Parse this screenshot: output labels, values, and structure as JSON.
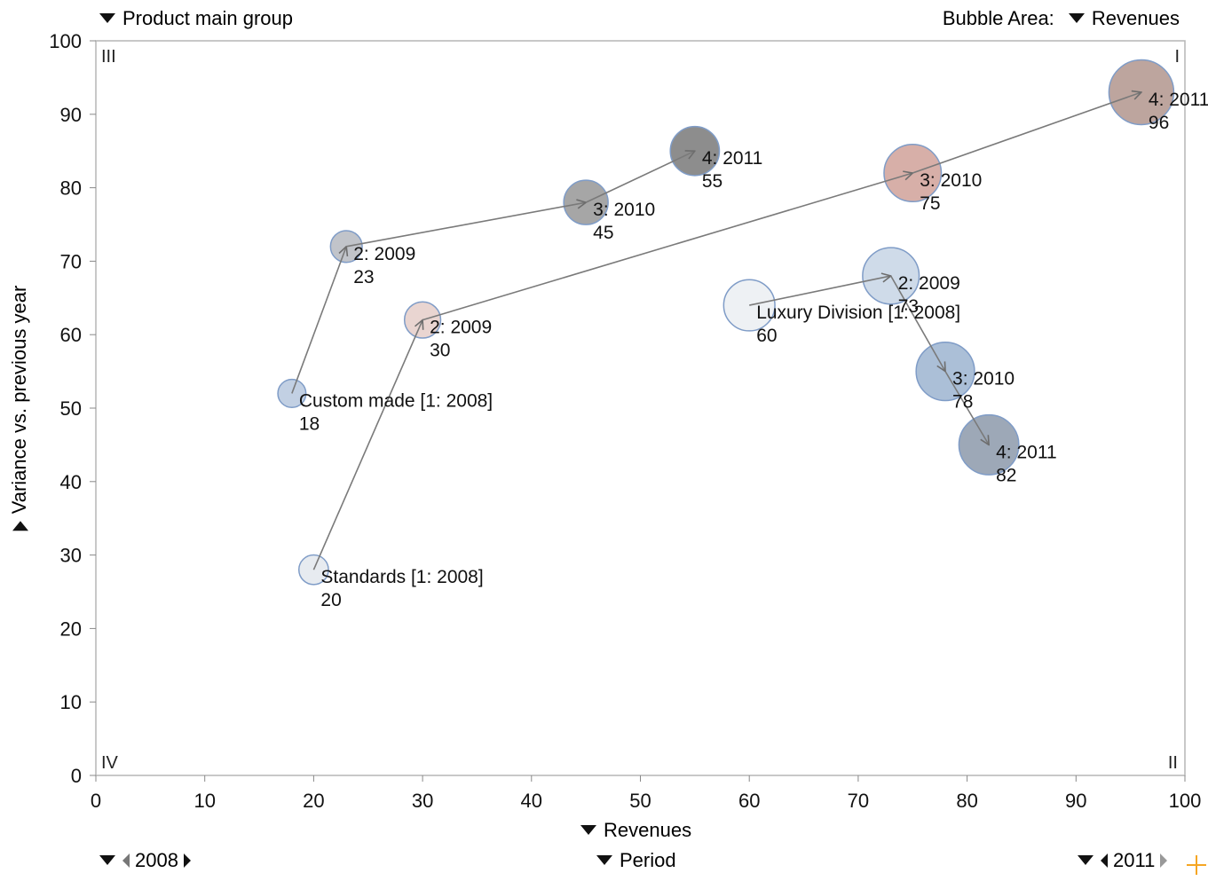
{
  "controls": {
    "group_selector": "Product main group",
    "bubble_area_label": "Bubble Area:",
    "bubble_area_value": "Revenues",
    "x_axis_selector": "Revenues",
    "y_axis_selector": "Variance vs. previous year",
    "period_selector": "Period",
    "period_start": "2008",
    "period_end": "2011"
  },
  "chart_data": {
    "type": "scatter",
    "subtype": "bubble",
    "xlabel": "Revenues",
    "ylabel": "Variance vs. previous year",
    "xlim": [
      0,
      100
    ],
    "ylim": [
      0,
      100
    ],
    "xticks": [
      0,
      10,
      20,
      30,
      40,
      50,
      60,
      70,
      80,
      90,
      100
    ],
    "yticks": [
      0,
      10,
      20,
      30,
      40,
      50,
      60,
      70,
      80,
      90,
      100
    ],
    "grid": false,
    "quadrant_labels": {
      "top_left": "III",
      "top_right": "I",
      "bottom_left": "IV",
      "bottom_right": "II"
    },
    "series": [
      {
        "name": "Custom made",
        "points": [
          {
            "label": "Custom made [1: 2008]",
            "value_label": "18",
            "x": 18,
            "y": 52,
            "size": 18,
            "color": "#b9c9df"
          },
          {
            "label": "2: 2009",
            "value_label": "23",
            "x": 23,
            "y": 72,
            "size": 23,
            "color": "#b8bcc3"
          },
          {
            "label": "3: 2010",
            "value_label": "45",
            "x": 45,
            "y": 78,
            "size": 45,
            "color": "#9a9a9a"
          },
          {
            "label": "4: 2011",
            "value_label": "55",
            "x": 55,
            "y": 85,
            "size": 55,
            "color": "#7d7d7d"
          }
        ]
      },
      {
        "name": "Standards",
        "points": [
          {
            "label": "Standards [1: 2008]",
            "value_label": "20",
            "x": 20,
            "y": 28,
            "size": 20,
            "color": "#e4e8ee"
          },
          {
            "label": "2: 2009",
            "value_label": "30",
            "x": 30,
            "y": 62,
            "size": 30,
            "color": "#e6cfcb"
          },
          {
            "label": "3: 2010",
            "value_label": "75",
            "x": 75,
            "y": 82,
            "size": 75,
            "color": "#d2a49c"
          },
          {
            "label": "4: 2011",
            "value_label": "96",
            "x": 96,
            "y": 93,
            "size": 96,
            "color": "#b49891"
          }
        ]
      },
      {
        "name": "Luxury Division",
        "points": [
          {
            "label": "Luxury Division [1: 2008]",
            "value_label": "60",
            "x": 60,
            "y": 64,
            "size": 60,
            "color": "#eceff2"
          },
          {
            "label": "2: 2009",
            "value_label": "73",
            "x": 73,
            "y": 68,
            "size": 73,
            "color": "#c8d6e6"
          },
          {
            "label": "3: 2010",
            "value_label": "78",
            "x": 78,
            "y": 55,
            "size": 78,
            "color": "#9fb6d2"
          },
          {
            "label": "4: 2011",
            "value_label": "82",
            "x": 82,
            "y": 45,
            "size": 82,
            "color": "#8f9cad"
          }
        ]
      }
    ]
  }
}
